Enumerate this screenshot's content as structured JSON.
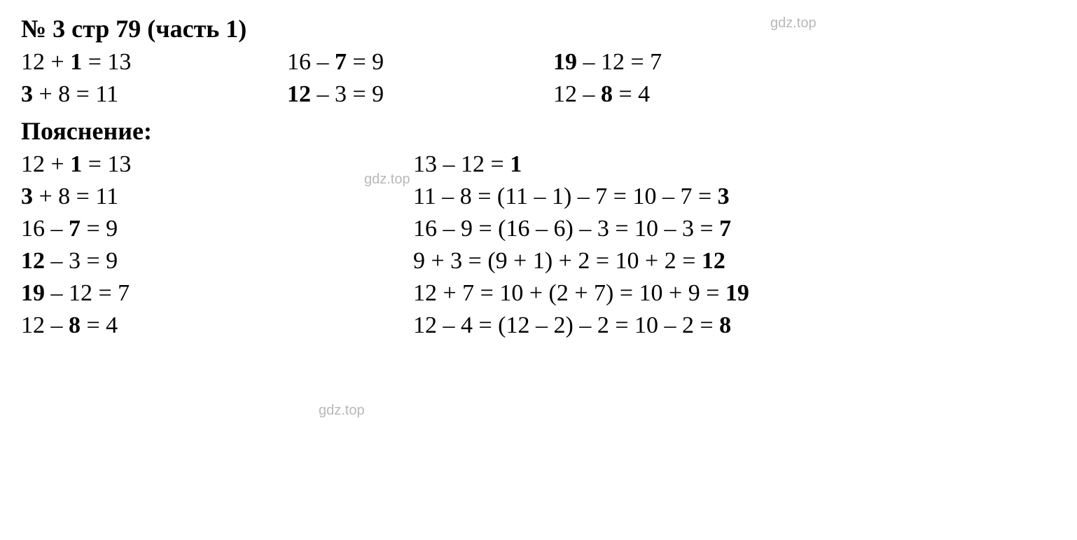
{
  "title": "№ 3 стр 79 (часть 1)",
  "watermark": "gdz.top",
  "top": {
    "r1": {
      "c1": {
        "a": "12 + ",
        "b": "1",
        "c": " = 13"
      },
      "c2": {
        "a": "16 – ",
        "b": "7",
        "c": " = 9"
      },
      "c3": {
        "a": "",
        "b": "19",
        "c": " – 12 = 7"
      }
    },
    "r2": {
      "c1": {
        "a": "",
        "b": "3",
        "c": " + 8 = 11"
      },
      "c2": {
        "a": "",
        "b": "12",
        "c": " – 3 = 9"
      },
      "c3": {
        "a": "12 – ",
        "b": "8",
        "c": " = 4"
      }
    }
  },
  "subtitle": "Пояснение:",
  "expl": {
    "r1": {
      "left": {
        "a": "12 + ",
        "b": "1",
        "c": " = 13"
      },
      "right": {
        "a": "13 – 12 = ",
        "b": "1",
        "c": ""
      }
    },
    "r2": {
      "left": {
        "a": "",
        "b": "3",
        "c": " + 8 = 11"
      },
      "right": {
        "a": "11 – 8 = (11 – 1) – 7 = 10 – 7 = ",
        "b": "3",
        "c": ""
      }
    },
    "r3": {
      "left": {
        "a": "16 – ",
        "b": "7",
        "c": " = 9"
      },
      "right": {
        "a": "16 – 9 = (16 – 6) – 3 = 10 – 3 = ",
        "b": "7",
        "c": ""
      }
    },
    "r4": {
      "left": {
        "a": "",
        "b": "12",
        "c": " – 3 = 9"
      },
      "right": {
        "a": "9 + 3 = (9 + 1) + 2 = 10 + 2 = ",
        "b": "12",
        "c": ""
      }
    },
    "r5": {
      "left": {
        "a": "",
        "b": "19",
        "c": " – 12 = 7"
      },
      "right": {
        "a": "12 + 7 = 10 + (2 + 7) = 10 + 9 = ",
        "b": "19",
        "c": ""
      }
    },
    "r6": {
      "left": {
        "a": "12 – ",
        "b": "8",
        "c": " = 4"
      },
      "right": {
        "a": "12 – 4 = (12 – 2) – 2 = 10 – 2 = ",
        "b": "8",
        "c": ""
      }
    }
  }
}
